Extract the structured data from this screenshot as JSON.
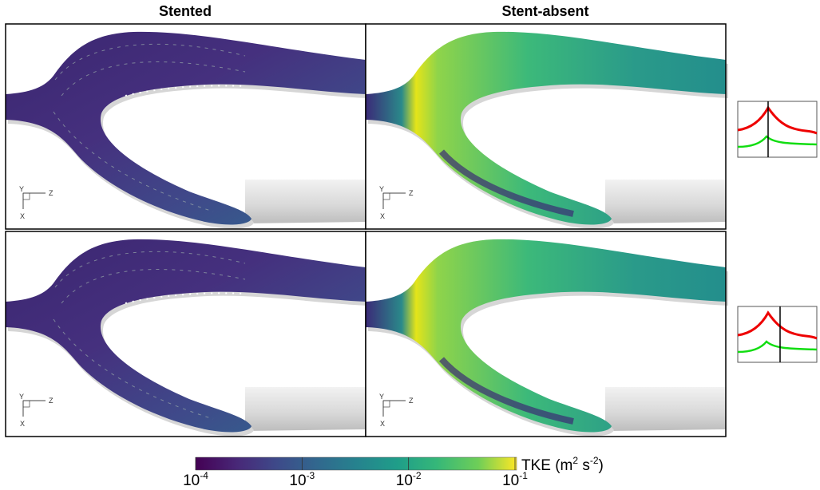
{
  "columns": [
    "Stented",
    "Stent-absent"
  ],
  "axis_triad": {
    "y": "Y",
    "z": "Z",
    "x": "X"
  },
  "colorbar": {
    "ticks": [
      {
        "base": "10",
        "exponent": "-4"
      },
      {
        "base": "10",
        "exponent": "-3"
      },
      {
        "base": "10",
        "exponent": "-2"
      },
      {
        "base": "10",
        "exponent": "-1"
      }
    ],
    "label": {
      "name": "TKE (m",
      "unit_exp1": "2",
      "mid": " s",
      "unit_exp2": "-2",
      "end": ")"
    }
  }
}
